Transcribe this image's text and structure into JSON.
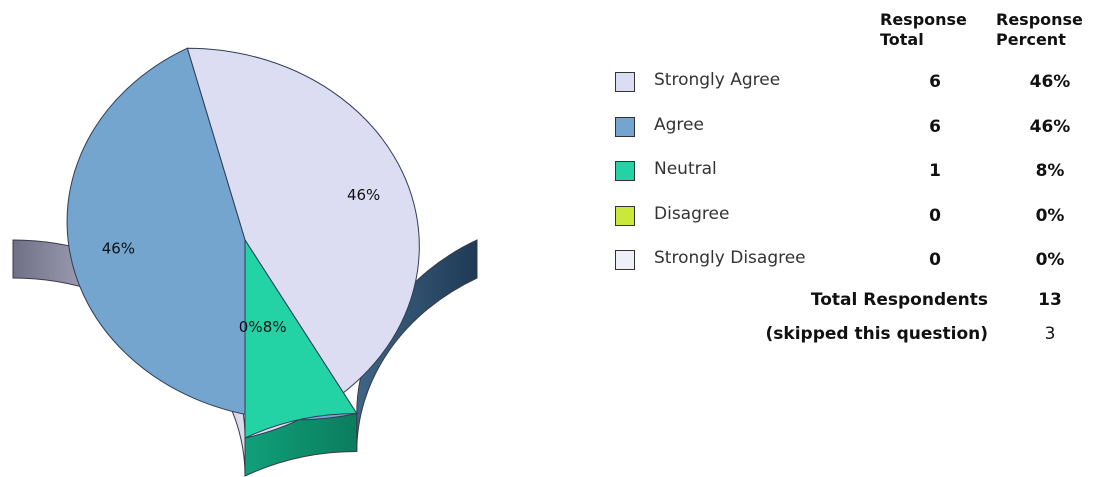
{
  "chart_data": {
    "type": "pie",
    "slices": [
      {
        "label": "Strongly Agree",
        "total": 6,
        "percent": "46%",
        "value": 46,
        "color": "#dcdcf3",
        "side": "#8f8fa6"
      },
      {
        "label": "Agree",
        "total": 6,
        "percent": "46%",
        "value": 46,
        "color": "#73a5cf",
        "side": "#2f4f6e"
      },
      {
        "label": "Neutral",
        "total": 1,
        "percent": "8%",
        "value": 8,
        "color": "#23d3a6",
        "side": "#0e8a68"
      },
      {
        "label": "Disagree",
        "total": 0,
        "percent": "0%",
        "value": 0,
        "color": "#c9e83a",
        "side": "#8aa31e"
      },
      {
        "label": "Strongly Disagree",
        "total": 0,
        "percent": "0%",
        "value": 0,
        "color": "#efeff7",
        "side": "#a0a0b0"
      }
    ],
    "pie_labels": [
      "46%",
      "46%",
      "8%",
      "0%"
    ],
    "legend_placement": "right"
  },
  "table": {
    "header_total": [
      "Response",
      "Total"
    ],
    "header_percent": [
      "Response",
      "Percent"
    ],
    "total_respondents_label": "Total Respondents",
    "total_respondents_value": "13",
    "skipped_label": "(skipped this question)",
    "skipped_value": "3"
  }
}
